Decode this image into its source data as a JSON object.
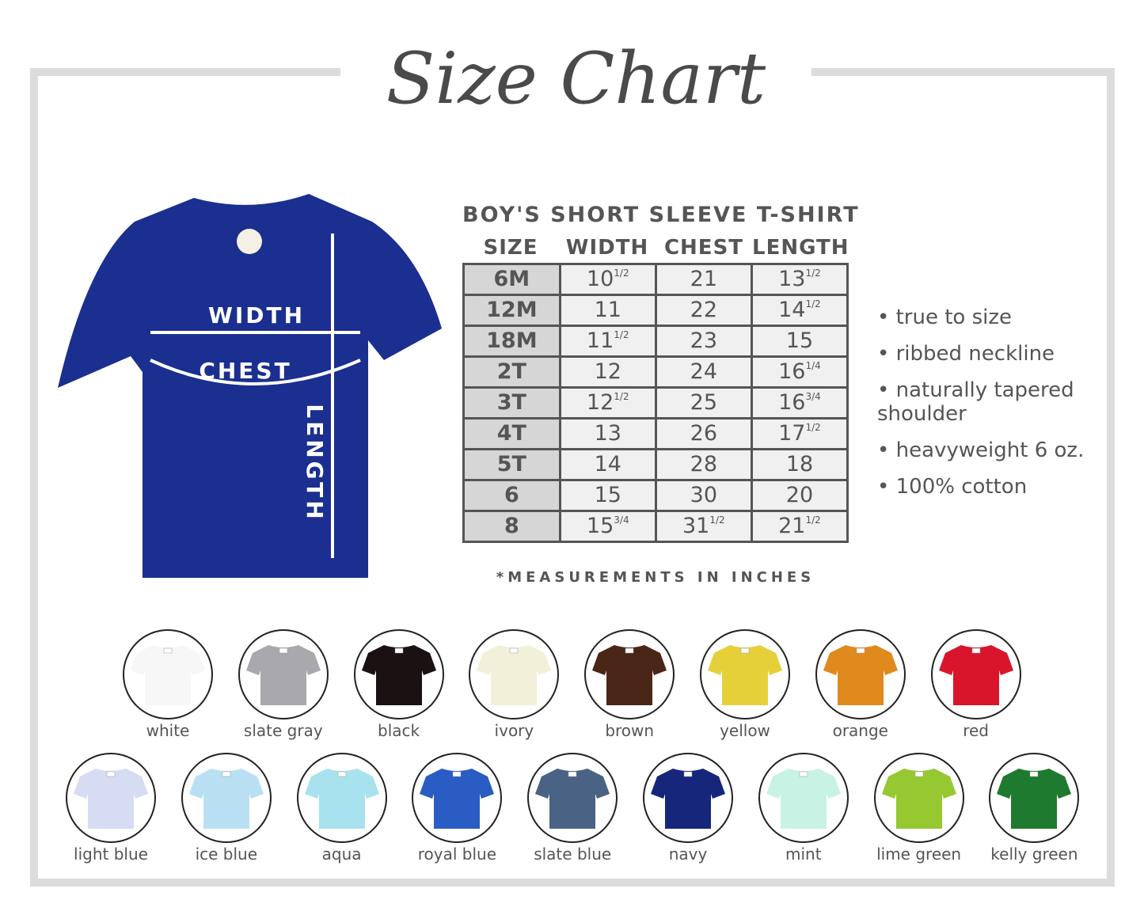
{
  "title": "Size Chart",
  "product_title": "BOY'S SHORT SLEEVE T-SHIRT",
  "shirt_labels": {
    "width": "WIDTH",
    "chest": "CHEST",
    "length": "LENGTH"
  },
  "table": {
    "headers": [
      "SIZE",
      "WIDTH",
      "CHEST",
      "LENGTH"
    ],
    "rows": [
      {
        "size": "6M",
        "width": "10",
        "width_frac": "1/2",
        "chest": "21",
        "chest_frac": "",
        "length": "13",
        "length_frac": "1/2"
      },
      {
        "size": "12M",
        "width": "11",
        "width_frac": "",
        "chest": "22",
        "chest_frac": "",
        "length": "14",
        "length_frac": "1/2"
      },
      {
        "size": "18M",
        "width": "11",
        "width_frac": "1/2",
        "chest": "23",
        "chest_frac": "",
        "length": "15",
        "length_frac": ""
      },
      {
        "size": "2T",
        "width": "12",
        "width_frac": "",
        "chest": "24",
        "chest_frac": "",
        "length": "16",
        "length_frac": "1/4"
      },
      {
        "size": "3T",
        "width": "12",
        "width_frac": "1/2",
        "chest": "25",
        "chest_frac": "",
        "length": "16",
        "length_frac": "3/4"
      },
      {
        "size": "4T",
        "width": "13",
        "width_frac": "",
        "chest": "26",
        "chest_frac": "",
        "length": "17",
        "length_frac": "1/2"
      },
      {
        "size": "5T",
        "width": "14",
        "width_frac": "",
        "chest": "28",
        "chest_frac": "",
        "length": "18",
        "length_frac": ""
      },
      {
        "size": "6",
        "width": "15",
        "width_frac": "",
        "chest": "30",
        "chest_frac": "",
        "length": "20",
        "length_frac": ""
      },
      {
        "size": "8",
        "width": "15",
        "width_frac": "3/4",
        "chest": "31",
        "chest_frac": "1/2",
        "length": "21",
        "length_frac": "1/2"
      }
    ],
    "note": "*MEASUREMENTS IN INCHES"
  },
  "features": [
    "true to size",
    "ribbed neckline",
    "naturally tapered shoulder",
    "heavyweight 6 oz.",
    "100% cotton"
  ],
  "main_shirt_color": "#1a2f8f",
  "colors_row1": [
    {
      "name": "white",
      "hex": "#f7f7f7"
    },
    {
      "name": "slate gray",
      "hex": "#a9a9ad"
    },
    {
      "name": "black",
      "hex": "#1a1212"
    },
    {
      "name": "ivory",
      "hex": "#f2f0d8"
    },
    {
      "name": "brown",
      "hex": "#4a2616"
    },
    {
      "name": "yellow",
      "hex": "#e6d03a"
    },
    {
      "name": "orange",
      "hex": "#e08a1e"
    },
    {
      "name": "red",
      "hex": "#d8152a"
    }
  ],
  "colors_row2": [
    {
      "name": "light blue",
      "hex": "#d6dcf2"
    },
    {
      "name": "ice blue",
      "hex": "#b8e0f2"
    },
    {
      "name": "aqua",
      "hex": "#a8e2ee"
    },
    {
      "name": "royal blue",
      "hex": "#2a5cc4"
    },
    {
      "name": "slate blue",
      "hex": "#4a6384"
    },
    {
      "name": "navy",
      "hex": "#16267a"
    },
    {
      "name": "mint",
      "hex": "#c8f2e4"
    },
    {
      "name": "lime green",
      "hex": "#96c832"
    },
    {
      "name": "kelly green",
      "hex": "#1e7a2e"
    }
  ]
}
